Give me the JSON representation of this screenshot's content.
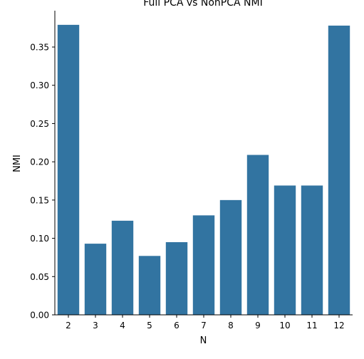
{
  "chart_data": {
    "type": "bar",
    "title": "Full PCA vs NonPCA NMI",
    "xlabel": "N",
    "ylabel": "NMI",
    "categories": [
      "2",
      "3",
      "4",
      "5",
      "6",
      "7",
      "8",
      "9",
      "10",
      "11",
      "12"
    ],
    "values": [
      0.379,
      0.093,
      0.123,
      0.077,
      0.095,
      0.13,
      0.15,
      0.209,
      0.169,
      0.169,
      0.378
    ],
    "ylim": [
      0,
      0.3975
    ],
    "yticks": [
      "0.00",
      "0.05",
      "0.10",
      "0.15",
      "0.20",
      "0.25",
      "0.30",
      "0.35"
    ],
    "ytick_values": [
      0,
      0.05,
      0.1,
      0.15,
      0.2,
      0.25,
      0.3,
      0.35
    ],
    "grid": false,
    "legend": "none",
    "bar_color": "#3274a1",
    "spines": "left-bottom"
  }
}
